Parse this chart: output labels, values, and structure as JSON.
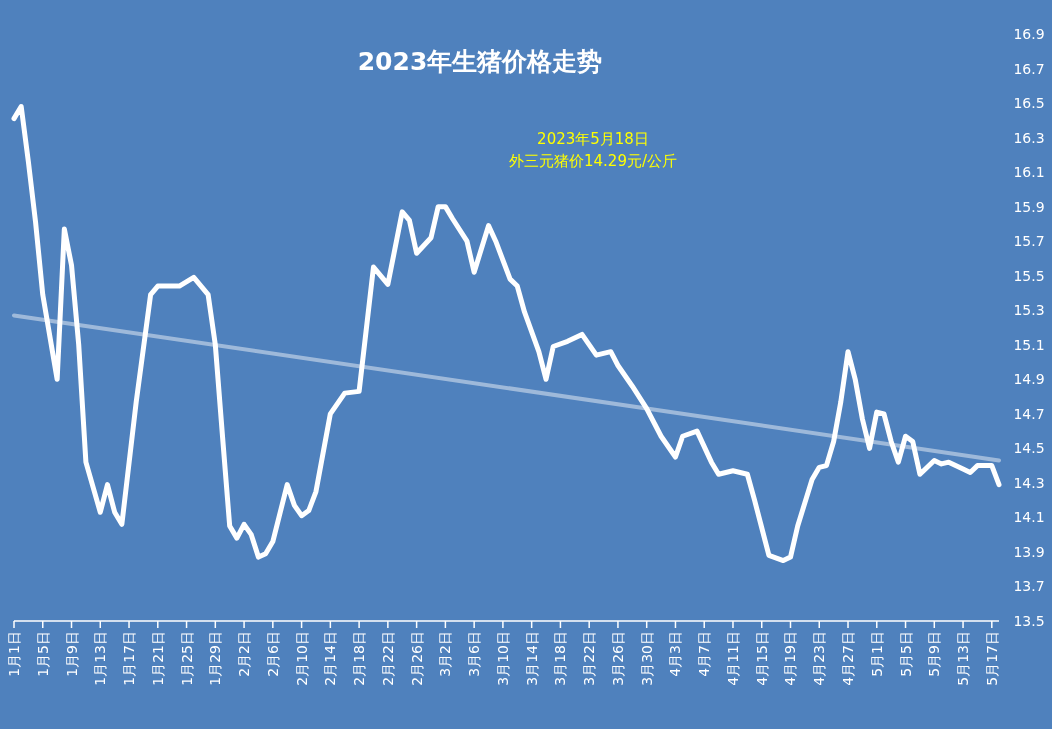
{
  "chart_data": {
    "type": "line",
    "title": "2023年生猪价格走势",
    "annotations": [
      "2023年5月18日",
      "外三元猪价14.29元/公斤"
    ],
    "x": [
      "2023-01-01",
      "2023-01-02",
      "2023-01-03",
      "2023-01-04",
      "2023-01-05",
      "2023-01-07",
      "2023-01-08",
      "2023-01-09",
      "2023-01-10",
      "2023-01-11",
      "2023-01-13",
      "2023-01-14",
      "2023-01-15",
      "2023-01-16",
      "2023-01-18",
      "2023-01-20",
      "2023-01-21",
      "2023-01-24",
      "2023-01-26",
      "2023-01-28",
      "2023-01-29",
      "2023-01-30",
      "2023-01-31",
      "2023-02-01",
      "2023-02-02",
      "2023-02-03",
      "2023-02-04",
      "2023-02-05",
      "2023-02-06",
      "2023-02-08",
      "2023-02-09",
      "2023-02-10",
      "2023-02-11",
      "2023-02-12",
      "2023-02-14",
      "2023-02-16",
      "2023-02-18",
      "2023-02-20",
      "2023-02-22",
      "2023-02-24",
      "2023-02-25",
      "2023-02-26",
      "2023-02-28",
      "2023-03-01",
      "2023-03-02",
      "2023-03-03",
      "2023-03-05",
      "2023-03-06",
      "2023-03-08",
      "2023-03-09",
      "2023-03-11",
      "2023-03-12",
      "2023-03-13",
      "2023-03-15",
      "2023-03-16",
      "2023-03-17",
      "2023-03-19",
      "2023-03-21",
      "2023-03-23",
      "2023-03-25",
      "2023-03-26",
      "2023-03-28",
      "2023-03-30",
      "2023-04-01",
      "2023-04-03",
      "2023-04-04",
      "2023-04-06",
      "2023-04-08",
      "2023-04-09",
      "2023-04-11",
      "2023-04-13",
      "2023-04-14",
      "2023-04-16",
      "2023-04-18",
      "2023-04-19",
      "2023-04-20",
      "2023-04-22",
      "2023-04-23",
      "2023-04-24",
      "2023-04-25",
      "2023-04-26",
      "2023-04-27",
      "2023-04-28",
      "2023-04-29",
      "2023-04-30",
      "2023-05-01",
      "2023-05-02",
      "2023-05-03",
      "2023-05-04",
      "2023-05-05",
      "2023-05-06",
      "2023-05-07",
      "2023-05-09",
      "2023-05-10",
      "2023-05-11",
      "2023-05-13",
      "2023-05-14",
      "2023-05-15",
      "2023-05-17",
      "2023-05-18"
    ],
    "series": [
      {
        "color": "#ffffff",
        "values": [
          16.41,
          16.48,
          16.16,
          15.81,
          15.39,
          14.9,
          15.77,
          15.56,
          15.1,
          14.42,
          14.13,
          14.29,
          14.13,
          14.06,
          14.77,
          15.39,
          15.44,
          15.44,
          15.49,
          15.39,
          15.1,
          14.57,
          14.05,
          13.98,
          14.06,
          14.0,
          13.87,
          13.89,
          13.96,
          14.29,
          14.17,
          14.11,
          14.14,
          14.25,
          14.7,
          14.82,
          14.83,
          15.55,
          15.45,
          15.87,
          15.82,
          15.63,
          15.72,
          15.9,
          15.9,
          15.83,
          15.7,
          15.52,
          15.79,
          15.7,
          15.48,
          15.44,
          15.29,
          15.06,
          14.9,
          15.09,
          15.12,
          15.16,
          15.04,
          15.06,
          14.98,
          14.86,
          14.73,
          14.57,
          14.45,
          14.57,
          14.6,
          14.42,
          14.35,
          14.37,
          14.35,
          14.2,
          13.88,
          13.85,
          13.87,
          14.05,
          14.32,
          14.39,
          14.4,
          14.54,
          14.77,
          15.06,
          14.9,
          14.67,
          14.5,
          14.71,
          14.7,
          14.54,
          14.42,
          14.57,
          14.54,
          14.35,
          14.43,
          14.41,
          14.42,
          14.38,
          14.36,
          14.4,
          14.4,
          14.29
        ]
      },
      {
        "type": "line",
        "color": "#b8cce4",
        "x": [
          "2023-01-01",
          "2023-05-18"
        ],
        "values": [
          15.27,
          14.43
        ]
      }
    ],
    "xlim": [
      "2023-01-01",
      "2023-05-18"
    ],
    "xticks": [
      {
        "value": "2023-01-01",
        "label": "1月1日"
      },
      {
        "value": "2023-01-05",
        "label": "1月5日"
      },
      {
        "value": "2023-01-09",
        "label": "1月9日"
      },
      {
        "value": "2023-01-13",
        "label": "1月13日"
      },
      {
        "value": "2023-01-17",
        "label": "1月17日"
      },
      {
        "value": "2023-01-21",
        "label": "1月21日"
      },
      {
        "value": "2023-01-25",
        "label": "1月25日"
      },
      {
        "value": "2023-01-29",
        "label": "1月29日"
      },
      {
        "value": "2023-02-02",
        "label": "2月2日"
      },
      {
        "value": "2023-02-06",
        "label": "2月6日"
      },
      {
        "value": "2023-02-10",
        "label": "2月10日"
      },
      {
        "value": "2023-02-14",
        "label": "2月14日"
      },
      {
        "value": "2023-02-18",
        "label": "2月18日"
      },
      {
        "value": "2023-02-22",
        "label": "2月22日"
      },
      {
        "value": "2023-02-26",
        "label": "2月26日"
      },
      {
        "value": "2023-03-02",
        "label": "3月2日"
      },
      {
        "value": "2023-03-06",
        "label": "3月6日"
      },
      {
        "value": "2023-03-10",
        "label": "3月10日"
      },
      {
        "value": "2023-03-14",
        "label": "3月14日"
      },
      {
        "value": "2023-03-18",
        "label": "3月18日"
      },
      {
        "value": "2023-03-22",
        "label": "3月22日"
      },
      {
        "value": "2023-03-26",
        "label": "3月26日"
      },
      {
        "value": "2023-03-30",
        "label": "3月30日"
      },
      {
        "value": "2023-04-03",
        "label": "4月3日"
      },
      {
        "value": "2023-04-07",
        "label": "4月7日"
      },
      {
        "value": "2023-04-11",
        "label": "4月11日"
      },
      {
        "value": "2023-04-15",
        "label": "4月15日"
      },
      {
        "value": "2023-04-19",
        "label": "4月19日"
      },
      {
        "value": "2023-04-23",
        "label": "4月23日"
      },
      {
        "value": "2023-04-27",
        "label": "4月27日"
      },
      {
        "value": "2023-05-01",
        "label": "5月1日"
      },
      {
        "value": "2023-05-05",
        "label": "5月5日"
      },
      {
        "value": "2023-05-09",
        "label": "5月9日"
      },
      {
        "value": "2023-05-13",
        "label": "5月13日"
      },
      {
        "value": "2023-05-17",
        "label": "5月17日"
      }
    ],
    "ylim": [
      13.5,
      16.9
    ],
    "yticks": [
      13.5,
      13.7,
      13.9,
      14.1,
      14.3,
      14.5,
      14.7,
      14.9,
      15.1,
      15.3,
      15.5,
      15.7,
      15.9,
      16.1,
      16.3,
      16.5,
      16.7,
      16.9
    ],
    "grid": false
  }
}
